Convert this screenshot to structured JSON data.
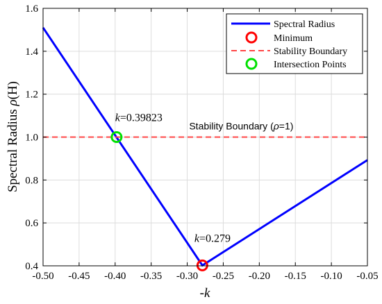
{
  "chart_data": {
    "type": "line",
    "xlabel_prefix": "-",
    "xlabel_var": "k",
    "ylabel_prefix": "Spectral Radius ",
    "ylabel_rho": "ρ",
    "ylabel_suffix": "(H)",
    "xlim": [
      -0.5,
      -0.05
    ],
    "ylim": [
      0.4,
      1.6
    ],
    "xticks": [
      -0.5,
      -0.45,
      -0.4,
      -0.35,
      -0.3,
      -0.25,
      -0.2,
      -0.15,
      -0.1,
      -0.05
    ],
    "xtick_labels": [
      "-0.50",
      "-0.45",
      "-0.40",
      "-0.35",
      "-0.30",
      "-0.25",
      "-0.20",
      "-0.15",
      "-0.10",
      "-0.05"
    ],
    "yticks": [
      0.4,
      0.6,
      0.8,
      1.0,
      1.2,
      1.4,
      1.6
    ],
    "ytick_labels": [
      "0.4",
      "0.6",
      "0.8",
      "1.0",
      "1.2",
      "1.4",
      "1.6"
    ],
    "grid": true,
    "series": [
      {
        "name": "Spectral Radius",
        "style": "solid",
        "color": "#0000ff",
        "x": [
          -0.5,
          -0.279,
          -0.05
        ],
        "y": [
          1.51,
          0.402,
          0.893
        ]
      },
      {
        "name": "Stability Boundary",
        "style": "dashed",
        "color": "#ff0000",
        "x": [
          -0.5,
          -0.05
        ],
        "y": [
          1.0,
          1.0
        ]
      }
    ],
    "markers": [
      {
        "name": "Minimum",
        "color": "#ff0000",
        "x": -0.279,
        "y": 0.402
      },
      {
        "name": "Intersection Points",
        "color": "#00e000",
        "x": -0.398,
        "y": 1.0
      }
    ],
    "annotations": [
      {
        "id": "intersection",
        "var": "k",
        "value": "=0.39823",
        "x": -0.4,
        "y": 1.075
      },
      {
        "id": "minimum",
        "var": "k",
        "value": "=0.279",
        "x": -0.29,
        "y": 0.512
      }
    ],
    "boundary_label": {
      "prefix": "Stability Boundary (",
      "rho": "ρ",
      "suffix": "=1)",
      "x": -0.225,
      "y": 1.035
    },
    "legend": {
      "position": "top-right",
      "entries": [
        "Spectral Radius",
        "Minimum",
        "Stability Boundary",
        "Intersection Points"
      ]
    }
  }
}
